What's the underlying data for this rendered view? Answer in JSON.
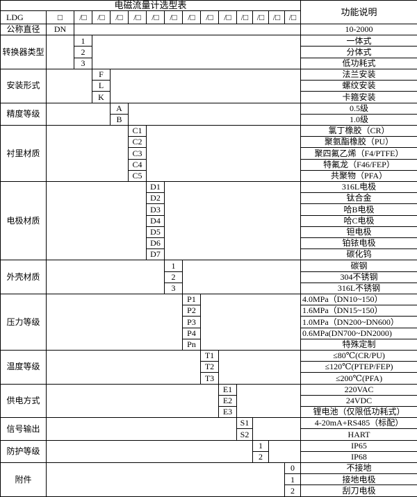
{
  "title": "电磁流量计选型表",
  "header": {
    "model_prefix": "LDG",
    "box": "□",
    "slash_box": "/□",
    "slash_box_count": 13,
    "function_header": "功能说明"
  },
  "sections": [
    {
      "label": "公称直径",
      "col": 0,
      "rows": [
        {
          "code": "DN",
          "desc": "10-2000"
        }
      ]
    },
    {
      "label": "转换器类型",
      "col": 1,
      "rows": [
        {
          "code": "1",
          "desc": "一体式"
        },
        {
          "code": "2",
          "desc": "分体式"
        },
        {
          "code": "3",
          "desc": "低功耗式"
        }
      ]
    },
    {
      "label": "安装形式",
      "col": 2,
      "rows": [
        {
          "code": "F",
          "desc": "法兰安装"
        },
        {
          "code": "L",
          "desc": "螺纹安装"
        },
        {
          "code": "K",
          "desc": "卡箍安装"
        }
      ]
    },
    {
      "label": "精度等级",
      "col": 3,
      "rows": [
        {
          "code": "A",
          "desc": "0.5级"
        },
        {
          "code": "B",
          "desc": "1.0级"
        }
      ]
    },
    {
      "label": "衬里材质",
      "col": 4,
      "rows": [
        {
          "code": "C1",
          "desc": "氯丁橡胶（CR）"
        },
        {
          "code": "C2",
          "desc": "聚氨酯橡胶（PU）"
        },
        {
          "code": "C3",
          "desc": "聚四氟乙烯（F4/PTFE）"
        },
        {
          "code": "C4",
          "desc": "特氟龙（F46/FEP）"
        },
        {
          "code": "C5",
          "desc": "共聚物（PFA）"
        }
      ]
    },
    {
      "label": "电极材质",
      "col": 5,
      "rows": [
        {
          "code": "D1",
          "desc": "316L电极"
        },
        {
          "code": "D2",
          "desc": "钛合金"
        },
        {
          "code": "D3",
          "desc": "哈B电极"
        },
        {
          "code": "D4",
          "desc": "哈C电极"
        },
        {
          "code": "D5",
          "desc": "钽电极"
        },
        {
          "code": "D6",
          "desc": "铂铱电极"
        },
        {
          "code": "D7",
          "desc": "碳化钨"
        }
      ]
    },
    {
      "label": "外壳材质",
      "col": 6,
      "rows": [
        {
          "code": "1",
          "desc": "碳钢"
        },
        {
          "code": "2",
          "desc": "304不锈钢"
        },
        {
          "code": "3",
          "desc": "316L不锈钢"
        }
      ]
    },
    {
      "label": "压力等级",
      "col": 7,
      "rows": [
        {
          "code": "P1",
          "desc": "4.0MPa（DN10~150）",
          "align": "left"
        },
        {
          "code": "P2",
          "desc": "1.6MPa（DN15~150）",
          "align": "left"
        },
        {
          "code": "P3",
          "desc": "1.0MPa（DN200~DN600）",
          "align": "left"
        },
        {
          "code": "P4",
          "desc": "0.6MPa(DN700~DN2000)",
          "align": "left"
        },
        {
          "code": "Pn",
          "desc": "特殊定制"
        }
      ]
    },
    {
      "label": "温度等级",
      "col": 8,
      "rows": [
        {
          "code": "T1",
          "desc": "≤80℃(CR/PU)"
        },
        {
          "code": "T2",
          "desc": "≤120℃(PTEP/FEP)"
        },
        {
          "code": "T3",
          "desc": "≤200℃(PFA)"
        }
      ]
    },
    {
      "label": "供电方式",
      "col": 9,
      "rows": [
        {
          "code": "E1",
          "desc": "220VAC"
        },
        {
          "code": "E2",
          "desc": "24VDC"
        },
        {
          "code": "E3",
          "desc": "锂电池（仅限低功耗式）"
        }
      ]
    },
    {
      "label": "信号输出",
      "col": 10,
      "rows": [
        {
          "code": "S1",
          "desc": "4-20mA+RS485（标配）"
        },
        {
          "code": "S2",
          "desc": "HART"
        }
      ]
    },
    {
      "label": "防护等级",
      "col": 11,
      "rows": [
        {
          "code": "1",
          "desc": "IP65"
        },
        {
          "code": "2",
          "desc": "IP68"
        }
      ]
    },
    {
      "label": "附件",
      "col": 13,
      "rows": [
        {
          "code": "0",
          "desc": "不接地"
        },
        {
          "code": "1",
          "desc": "接地电极"
        },
        {
          "code": "2",
          "desc": "刮刀电极"
        }
      ]
    }
  ]
}
